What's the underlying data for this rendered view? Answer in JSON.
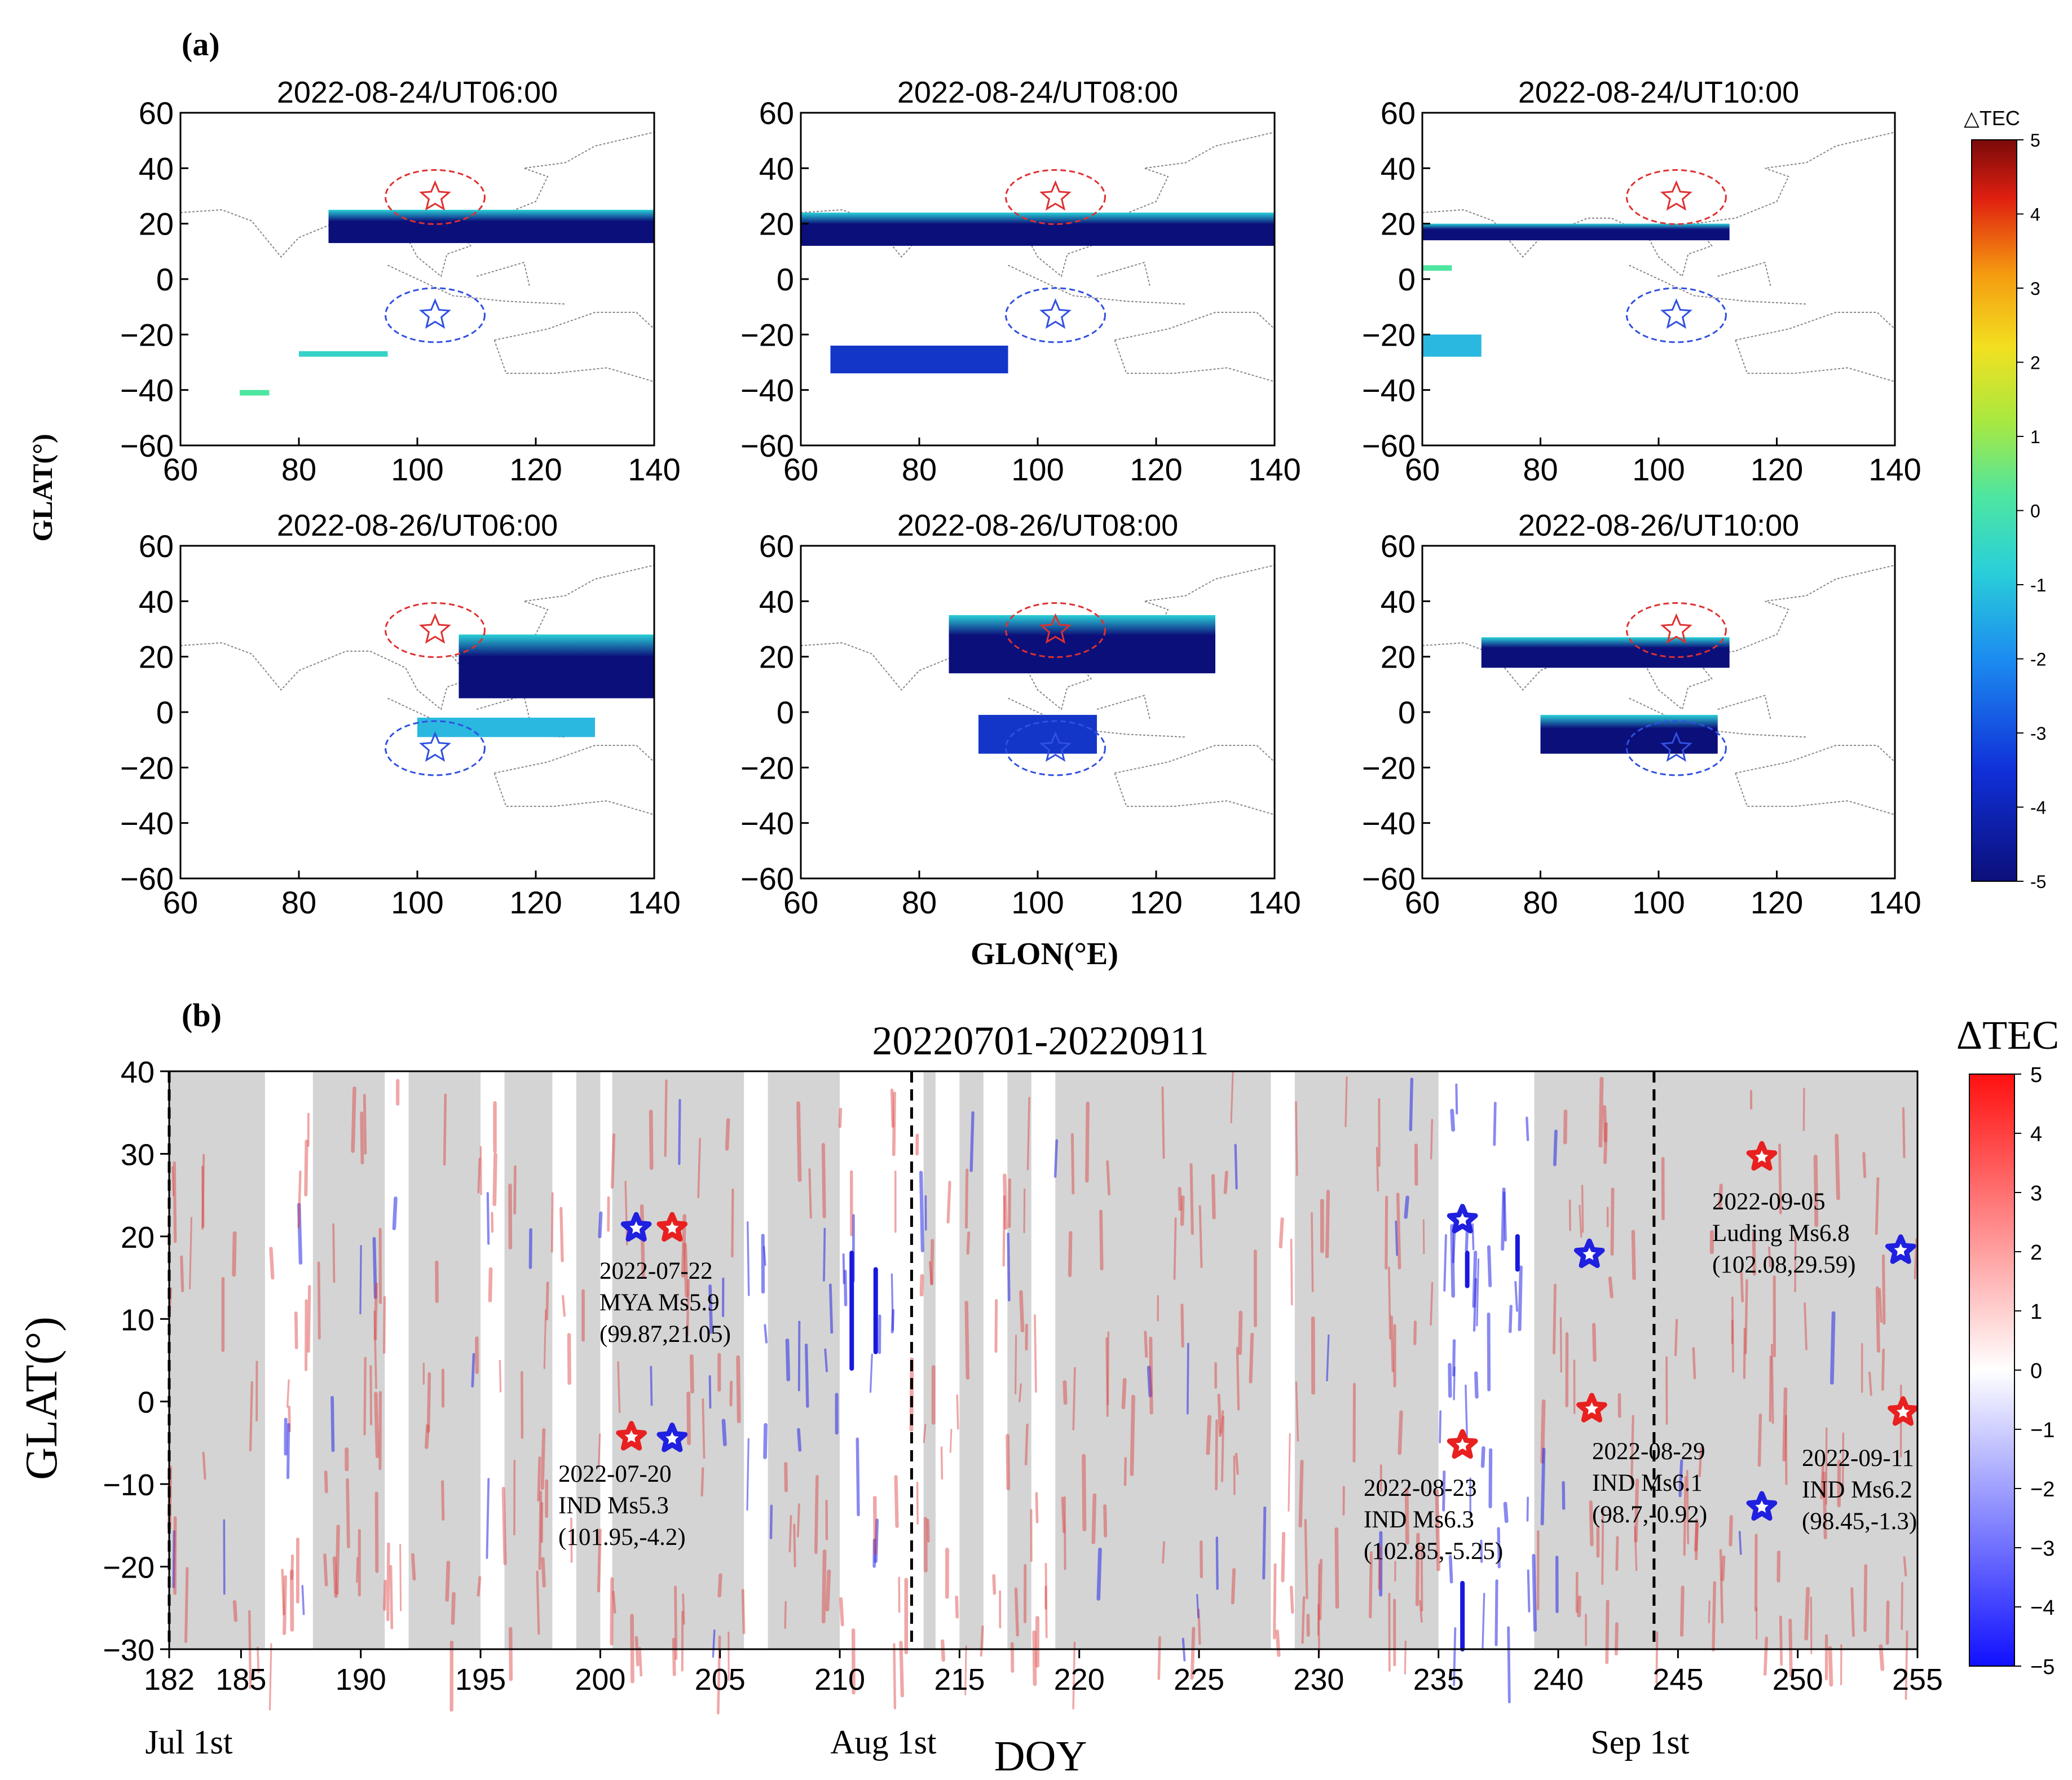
{
  "panel_a": {
    "label": "(a)",
    "ylabel": "GLAT(°)",
    "xlabel": "GLON(°E)",
    "colorbar_title": "△TEC",
    "colorbar_ticks": [
      "5",
      "4",
      "3",
      "2",
      "1",
      "0",
      "-1",
      "-2",
      "-3",
      "-4",
      "-5"
    ],
    "x_ticks": [
      "60",
      "80",
      "100",
      "120",
      "140"
    ],
    "y_ticks": [
      "60",
      "40",
      "20",
      "0",
      "−20",
      "−40",
      "−60"
    ],
    "maps": [
      {
        "title": "2022-08-24/UT06:00"
      },
      {
        "title": "2022-08-24/UT08:00"
      },
      {
        "title": "2022-08-24/UT10:00"
      },
      {
        "title": "2022-08-26/UT06:00"
      },
      {
        "title": "2022-08-26/UT08:00"
      },
      {
        "title": "2022-08-26/UT10:00"
      }
    ]
  },
  "panel_b": {
    "label": "(b)",
    "title": "20220701-20220911",
    "ylabel": "GLAT(°)",
    "xlabel": "DOY",
    "colorbar_title": "ΔTEC",
    "colorbar_ticks": [
      "5",
      "4",
      "3",
      "2",
      "1",
      "0",
      "−1",
      "−2",
      "−3",
      "−4",
      "−5"
    ],
    "x_ticks": [
      "182",
      "185",
      "190",
      "195",
      "200",
      "205",
      "210",
      "215",
      "220",
      "225",
      "230",
      "235",
      "240",
      "245",
      "250",
      "255"
    ],
    "y_ticks": [
      "40",
      "30",
      "20",
      "10",
      "0",
      "−10",
      "−20",
      "−30"
    ],
    "month_labels": [
      "Jul 1st",
      "Aug 1st",
      "Sep 1st"
    ],
    "annotations": [
      {
        "lines": [
          "2022-07-22",
          "MYA Ms5.9",
          "(99.87,21.05)"
        ]
      },
      {
        "lines": [
          "2022-07-20",
          "IND Ms5.3",
          "(101.95,-4.2)"
        ]
      },
      {
        "lines": [
          "2022-08-23",
          "IND Ms6.3",
          "(102.85,-5.25)"
        ]
      },
      {
        "lines": [
          "2022-08-29",
          "IND Ms6.1",
          "(98.7,-0.92)"
        ]
      },
      {
        "lines": [
          "2022-09-05",
          "Luding Ms6.8",
          "(102.08,29.59)"
        ]
      },
      {
        "lines": [
          "2022-09-11",
          "IND Ms6.2",
          "(98.45,-1.3)"
        ]
      }
    ]
  },
  "chart_data": [
    {
      "type": "heatmap",
      "panel": "(a)",
      "xlabel": "GLON(°E)",
      "ylabel": "GLAT(°)",
      "xlim": [
        60,
        140
      ],
      "ylim": [
        -60,
        60
      ],
      "colorbar": {
        "title": "△TEC",
        "range": [
          -5,
          5
        ]
      },
      "epicenter_markers": [
        {
          "color": "#e03030",
          "lon": 103,
          "lat": 29.6
        },
        {
          "color": "#3050e0",
          "lon": 103,
          "lat": -13
        }
      ],
      "maps": [
        {
          "title": "2022-08-24/UT06:00",
          "anomaly_regions": [
            {
              "lon": [
                85,
                140
              ],
              "lat": [
                13,
                25
              ],
              "value": -5
            },
            {
              "lon": [
                80,
                95
              ],
              "lat": [
                -28,
                -26
              ],
              "value": -1.5
            },
            {
              "lon": [
                70,
                75
              ],
              "lat": [
                -42,
                -40
              ],
              "value": -1.2
            }
          ]
        },
        {
          "title": "2022-08-24/UT08:00",
          "anomaly_regions": [
            {
              "lon": [
                60,
                140
              ],
              "lat": [
                12,
                24
              ],
              "value": -5
            },
            {
              "lon": [
                65,
                95
              ],
              "lat": [
                -34,
                -24
              ],
              "value": -3.5
            }
          ]
        },
        {
          "title": "2022-08-24/UT10:00",
          "anomaly_regions": [
            {
              "lon": [
                60,
                112
              ],
              "lat": [
                14,
                20
              ],
              "value": -5
            },
            {
              "lon": [
                60,
                70
              ],
              "lat": [
                -28,
                -20
              ],
              "value": -2
            },
            {
              "lon": [
                60,
                65
              ],
              "lat": [
                3,
                5
              ],
              "value": -1
            }
          ]
        },
        {
          "title": "2022-08-26/UT06:00",
          "anomaly_regions": [
            {
              "lon": [
                107,
                140
              ],
              "lat": [
                5,
                28
              ],
              "value": -5
            },
            {
              "lon": [
                100,
                130
              ],
              "lat": [
                -9,
                -2
              ],
              "value": -2
            }
          ]
        },
        {
          "title": "2022-08-26/UT08:00",
          "anomaly_regions": [
            {
              "lon": [
                85,
                130
              ],
              "lat": [
                14,
                35
              ],
              "value": -5
            },
            {
              "lon": [
                90,
                110
              ],
              "lat": [
                -15,
                -1
              ],
              "value": -4
            }
          ]
        },
        {
          "title": "2022-08-26/UT10:00",
          "anomaly_regions": [
            {
              "lon": [
                70,
                112
              ],
              "lat": [
                16,
                27
              ],
              "value": -5
            },
            {
              "lon": [
                80,
                110
              ],
              "lat": [
                -15,
                -1
              ],
              "value": -5
            }
          ]
        }
      ]
    },
    {
      "type": "heatmap",
      "panel": "(b)",
      "title": "20220701-20220911",
      "xlabel": "DOY",
      "ylabel": "GLAT(°)",
      "xlim": [
        182,
        255
      ],
      "ylim": [
        -30,
        40
      ],
      "colorbar": {
        "title": "ΔTEC",
        "range": [
          -5,
          5
        ]
      },
      "vertical_dashed_lines": [
        182,
        213,
        244
      ],
      "disturbed_periods_gray": [
        [
          182,
          186
        ],
        [
          188,
          191
        ],
        [
          192,
          195
        ],
        [
          196,
          198
        ],
        [
          199,
          200
        ],
        [
          200.5,
          206
        ],
        [
          207,
          210
        ],
        [
          213.5,
          214
        ],
        [
          215,
          216
        ],
        [
          217,
          218
        ],
        [
          219,
          228
        ],
        [
          229,
          235
        ],
        [
          239,
          255
        ]
      ],
      "earthquakes": [
        {
          "date": "2022-07-22",
          "name": "MYA Ms5.9",
          "lon": 99.87,
          "lat": 21.05,
          "doy": 203,
          "marker_doy": 201.5,
          "marker_lat": 21
        },
        {
          "date": "2022-07-20",
          "name": "IND Ms5.3",
          "lon": 101.95,
          "lat": -4.2,
          "doy": 201,
          "marker_doy": 203,
          "marker_lat": -4.5
        },
        {
          "date": "2022-08-23",
          "name": "IND Ms6.3",
          "lon": 102.85,
          "lat": -5.25,
          "doy": 235,
          "marker_doy": 236,
          "marker_lat": 22
        },
        {
          "date": "2022-08-29",
          "name": "IND Ms6.1",
          "lon": 98.7,
          "lat": -0.92,
          "doy": 241,
          "marker_doy": 241.3,
          "marker_lat": 17.8
        },
        {
          "date": "2022-09-05",
          "name": "Luding Ms6.8",
          "lon": 102.08,
          "lat": 29.59,
          "doy": 248,
          "marker_doy": 248.5,
          "marker_lat": -12.8
        },
        {
          "date": "2022-09-11",
          "name": "IND Ms6.2",
          "lon": 98.45,
          "lat": -1.3,
          "doy": 254,
          "marker_doy": 254.3,
          "marker_lat": 18.3
        }
      ]
    }
  ]
}
